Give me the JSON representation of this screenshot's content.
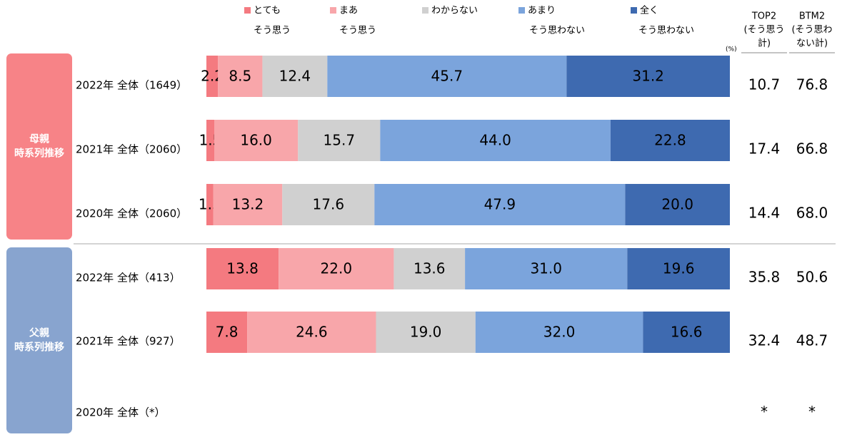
{
  "chart_data": {
    "type": "bar",
    "orientation": "horizontal",
    "stacked": true,
    "unit": "(%)",
    "legend": [
      {
        "lines": [
          "とても",
          "そう思う"
        ],
        "color": "#f47a80"
      },
      {
        "lines": [
          "まあ",
          "そう思う"
        ],
        "color": "#f8a6aa"
      },
      {
        "lines": [
          "わからない"
        ],
        "color": "#d0d0d0"
      },
      {
        "lines": [
          "あまり",
          "そう思わない"
        ],
        "color": "#7ba4dc"
      },
      {
        "lines": [
          "全く",
          "そう思わない"
        ],
        "color": "#3e6ab0"
      }
    ],
    "summary_headers": [
      {
        "lines": [
          "TOP2",
          "(そう思う",
          "計)"
        ]
      },
      {
        "lines": [
          "BTM2",
          "(そう思わ",
          "ない計)"
        ]
      }
    ],
    "groups": [
      {
        "lines": [
          "母親",
          "時系列推移"
        ],
        "color": "#f78387"
      },
      {
        "lines": [
          "父親",
          "時系列推移"
        ],
        "color": "#88a4cf"
      }
    ],
    "rows": [
      {
        "group": 0,
        "label": "2022年 全体（1649）",
        "values": [
          2.2,
          8.5,
          12.4,
          45.7,
          31.2
        ],
        "labels": [
          "2.2",
          "8.5",
          "12.4",
          "45.7",
          "31.2"
        ],
        "top2": "10.7",
        "btm2": "76.8"
      },
      {
        "group": 0,
        "label": "2021年 全体（2060）",
        "values": [
          1.5,
          16.0,
          15.7,
          44.0,
          22.8
        ],
        "labels": [
          "1.5",
          "16.0",
          "15.7",
          "44.0",
          "22.8"
        ],
        "top2": "17.4",
        "btm2": "66.8"
      },
      {
        "group": 0,
        "label": "2020年 全体（2060）",
        "values": [
          1.3,
          13.2,
          17.6,
          47.9,
          20.0
        ],
        "labels": [
          "1.3",
          "13.2",
          "17.6",
          "47.9",
          "20.0"
        ],
        "top2": "14.4",
        "btm2": "68.0"
      },
      {
        "group": 1,
        "label": "2022年 全体（413）",
        "values": [
          13.8,
          22.0,
          13.6,
          31.0,
          19.6
        ],
        "labels": [
          "13.8",
          "22.0",
          "13.6",
          "31.0",
          "19.6"
        ],
        "top2": "35.8",
        "btm2": "50.6"
      },
      {
        "group": 1,
        "label": "2021年 全体（927）",
        "values": [
          7.8,
          24.6,
          19.0,
          32.0,
          16.6
        ],
        "labels": [
          "7.8",
          "24.6",
          "19.0",
          "32.0",
          "16.6"
        ],
        "top2": "32.4",
        "btm2": "48.7"
      },
      {
        "group": 1,
        "label": "2020年 全体（*）",
        "values": [],
        "labels": [],
        "top2": "*",
        "btm2": "*"
      }
    ],
    "xlim": [
      0,
      100
    ]
  }
}
